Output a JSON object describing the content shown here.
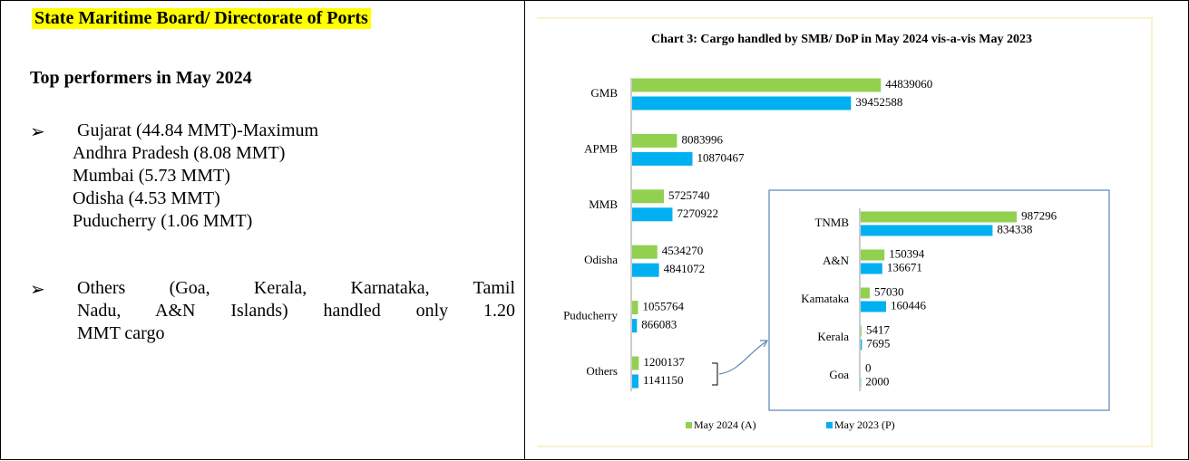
{
  "document": {
    "header": "State Maritime Board/ Directorate of Ports",
    "subheading": "Top performers in May 2024",
    "bullets": [
      {
        "lines": [
          "Gujarat (44.84 MMT)-Maximum",
          "Andhra Pradesh (8.08 MMT)",
          "Mumbai (5.73 MMT)",
          "Odisha (4.53 MMT)",
          "Puducherry (1.06 MMT)"
        ]
      },
      {
        "lines": [
          "Others (Goa, Kerala, Karnataka, Tamil",
          "Nadu, A&N Islands) handled only 1.20",
          "MMT cargo"
        ]
      }
    ]
  },
  "chart_data": [
    {
      "type": "bar",
      "orientation": "horizontal",
      "title": "Chart 3: Cargo handled by SMB/ DoP in May 2024 vis-a-vis May 2023",
      "categories": [
        "GMB",
        "APMB",
        "MMB",
        "Odisha",
        "Puducherry",
        "Others"
      ],
      "series": [
        {
          "name": "May 2024 (A)",
          "color": "#92d050",
          "values": [
            44839060,
            8083996,
            5725740,
            4534270,
            1055764,
            1200137
          ]
        },
        {
          "name": "May 2023 (P)",
          "color": "#00b0f0",
          "values": [
            39452588,
            10870467,
            7270922,
            4841072,
            866083,
            1141150
          ]
        }
      ],
      "xlim": [
        0,
        60000000
      ],
      "legend": "bottom"
    },
    {
      "type": "bar",
      "orientation": "horizontal",
      "categories": [
        "TNMB",
        "A&N",
        "Kamataka",
        "Kerala",
        "Goa"
      ],
      "series": [
        {
          "color": "#92d050",
          "values": [
            987296,
            150394,
            57030,
            5417,
            0
          ]
        },
        {
          "color": "#00b0f0",
          "values": [
            834338,
            136671,
            160446,
            7695,
            2000
          ]
        }
      ],
      "xlim": [
        0,
        1400000
      ]
    }
  ]
}
